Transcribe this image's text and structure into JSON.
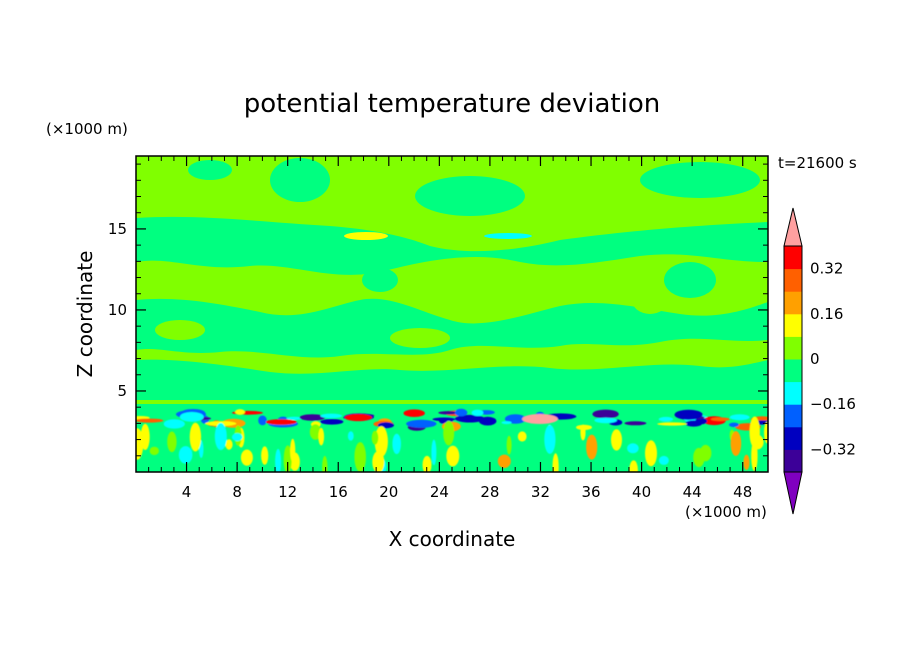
{
  "chart_data": {
    "type": "heatmap",
    "title": "potential temperature deviation",
    "xlabel": "X coordinate",
    "ylabel": "Z coordinate",
    "x_unit": "(×1000 m)",
    "y_unit": "(×1000 m)",
    "time_label": "t=21600 s",
    "xlim": [
      0,
      50
    ],
    "ylim": [
      0,
      19.5
    ],
    "x_ticks": [
      4,
      8,
      12,
      16,
      20,
      24,
      28,
      32,
      36,
      40,
      44,
      48
    ],
    "y_ticks": [
      5,
      10,
      15
    ],
    "colorbar": {
      "levels": [
        -0.4,
        -0.32,
        -0.24,
        -0.16,
        -0.08,
        0,
        0.08,
        0.16,
        0.24,
        0.32,
        0.4
      ],
      "labels": [
        "0.32",
        "0.16",
        "0",
        "−0.16",
        "−0.32"
      ],
      "label_values": [
        0.32,
        0.16,
        0,
        -0.16,
        -0.32
      ],
      "colors": [
        "#8000c0",
        "#3c0098",
        "#0000c0",
        "#0060ff",
        "#00ffff",
        "#00ff80",
        "#80ff00",
        "#ffff00",
        "#ffa000",
        "#ff6000",
        "#ff0000",
        "#ffa0a0"
      ],
      "extend": "both"
    },
    "grid": false
  }
}
